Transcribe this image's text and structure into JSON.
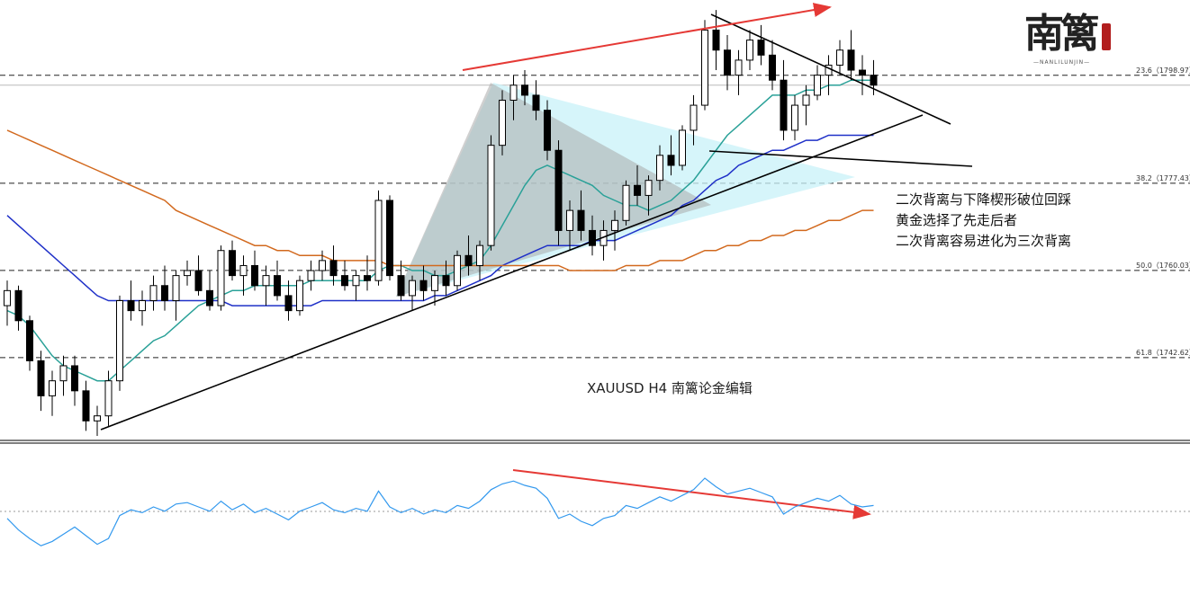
{
  "chart_data": {
    "type": "candlestick",
    "title": "XAUUSD  H4  南篱论金编辑",
    "symbol": "XAUUSD",
    "timeframe": "H4",
    "price_range": [
      1727,
      1814
    ],
    "fib_levels": [
      {
        "label": "23.6（1798.97）",
        "ratio": 23.6,
        "price": 1798.97
      },
      {
        "label": "38.2（1777.43）",
        "ratio": 38.2,
        "price": 1777.43
      },
      {
        "label": "50.0（1760.03）",
        "ratio": 50.0,
        "price": 1760.03
      },
      {
        "label": "61.8（1742.62）",
        "ratio": 61.8,
        "price": 1742.62
      }
    ],
    "candles": [
      [
        1753,
        1758,
        1749,
        1756
      ],
      [
        1756,
        1757,
        1748,
        1750
      ],
      [
        1750,
        1751,
        1740,
        1742
      ],
      [
        1742,
        1744,
        1732,
        1735
      ],
      [
        1735,
        1740,
        1731,
        1738
      ],
      [
        1738,
        1743,
        1735,
        1741
      ],
      [
        1741,
        1743,
        1733,
        1736
      ],
      [
        1736,
        1738,
        1728,
        1730
      ],
      [
        1730,
        1733,
        1727,
        1731
      ],
      [
        1731,
        1740,
        1729,
        1738
      ],
      [
        1738,
        1755,
        1736,
        1754
      ],
      [
        1754,
        1758,
        1750,
        1752
      ],
      [
        1752,
        1756,
        1749,
        1754
      ],
      [
        1754,
        1759,
        1752,
        1757
      ],
      [
        1757,
        1761,
        1752,
        1754
      ],
      [
        1754,
        1760,
        1750,
        1759
      ],
      [
        1759,
        1762,
        1757,
        1760
      ],
      [
        1760,
        1763,
        1755,
        1756
      ],
      [
        1756,
        1760,
        1752,
        1753
      ],
      [
        1753,
        1765,
        1752,
        1764
      ],
      [
        1764,
        1766,
        1758,
        1759
      ],
      [
        1759,
        1763,
        1755,
        1761
      ],
      [
        1761,
        1764,
        1756,
        1757
      ],
      [
        1757,
        1761,
        1753,
        1759
      ],
      [
        1759,
        1762,
        1754,
        1755
      ],
      [
        1755,
        1758,
        1750,
        1752
      ],
      [
        1752,
        1759,
        1751,
        1758
      ],
      [
        1758,
        1762,
        1756,
        1760
      ],
      [
        1760,
        1764,
        1758,
        1762
      ],
      [
        1762,
        1765,
        1757,
        1759
      ],
      [
        1759,
        1762,
        1756,
        1757
      ],
      [
        1757,
        1760,
        1754,
        1759
      ],
      [
        1759,
        1763,
        1756,
        1758
      ],
      [
        1758,
        1776,
        1757,
        1774
      ],
      [
        1774,
        1775,
        1758,
        1759
      ],
      [
        1759,
        1762,
        1754,
        1755
      ],
      [
        1755,
        1759,
        1752,
        1758
      ],
      [
        1758,
        1761,
        1754,
        1756
      ],
      [
        1756,
        1760,
        1753,
        1759
      ],
      [
        1759,
        1762,
        1755,
        1757
      ],
      [
        1757,
        1764,
        1756,
        1763
      ],
      [
        1763,
        1767,
        1759,
        1761
      ],
      [
        1761,
        1766,
        1758,
        1765
      ],
      [
        1765,
        1787,
        1764,
        1785
      ],
      [
        1785,
        1796,
        1783,
        1794
      ],
      [
        1794,
        1799,
        1790,
        1797
      ],
      [
        1797,
        1800,
        1793,
        1795
      ],
      [
        1795,
        1798,
        1790,
        1792
      ],
      [
        1792,
        1794,
        1782,
        1784
      ],
      [
        1784,
        1786,
        1765,
        1768
      ],
      [
        1768,
        1774,
        1764,
        1772
      ],
      [
        1772,
        1776,
        1766,
        1768
      ],
      [
        1768,
        1771,
        1763,
        1765
      ],
      [
        1765,
        1770,
        1762,
        1768
      ],
      [
        1768,
        1772,
        1764,
        1770
      ],
      [
        1770,
        1778,
        1769,
        1777
      ],
      [
        1777,
        1781,
        1773,
        1775
      ],
      [
        1775,
        1779,
        1771,
        1778
      ],
      [
        1778,
        1785,
        1776,
        1783
      ],
      [
        1783,
        1787,
        1779,
        1781
      ],
      [
        1781,
        1789,
        1780,
        1788
      ],
      [
        1788,
        1795,
        1785,
        1793
      ],
      [
        1793,
        1810,
        1792,
        1808
      ],
      [
        1808,
        1812,
        1800,
        1804
      ],
      [
        1804,
        1807,
        1796,
        1799
      ],
      [
        1799,
        1804,
        1795,
        1802
      ],
      [
        1802,
        1808,
        1800,
        1806
      ],
      [
        1806,
        1809,
        1801,
        1803
      ],
      [
        1803,
        1806,
        1796,
        1798
      ],
      [
        1798,
        1802,
        1786,
        1788
      ],
      [
        1788,
        1795,
        1786,
        1793
      ],
      [
        1793,
        1797,
        1789,
        1795
      ],
      [
        1795,
        1801,
        1794,
        1799
      ],
      [
        1799,
        1803,
        1795,
        1801
      ],
      [
        1801,
        1806,
        1799,
        1804
      ],
      [
        1804,
        1808,
        1798,
        1800
      ],
      [
        1800,
        1803,
        1795,
        1799
      ],
      [
        1799,
        1802,
        1795,
        1797
      ]
    ],
    "moving_averages": [
      {
        "color": "#2aa198",
        "values": [
          1752,
          1751,
          1749,
          1746,
          1743,
          1741,
          1740,
          1739,
          1738,
          1738,
          1740,
          1742,
          1744,
          1746,
          1747,
          1749,
          1751,
          1753,
          1754,
          1755,
          1756,
          1756,
          1757,
          1757,
          1757,
          1757,
          1757,
          1758,
          1758,
          1758,
          1758,
          1758,
          1758,
          1760,
          1761,
          1761,
          1760,
          1760,
          1759,
          1759,
          1760,
          1761,
          1762,
          1765,
          1769,
          1773,
          1777,
          1780,
          1781,
          1780,
          1779,
          1778,
          1777,
          1775,
          1774,
          1773,
          1773,
          1772,
          1773,
          1774,
          1776,
          1778,
          1781,
          1784,
          1787,
          1789,
          1791,
          1793,
          1795,
          1795,
          1795,
          1796,
          1796,
          1797,
          1797,
          1798,
          1798,
          1798
        ]
      },
      {
        "color": "#1f30c8",
        "values": [
          1771,
          1769,
          1767,
          1765,
          1763,
          1761,
          1759,
          1757,
          1755,
          1754,
          1754,
          1754,
          1754,
          1754,
          1754,
          1754,
          1754,
          1754,
          1754,
          1754,
          1753,
          1753,
          1753,
          1753,
          1753,
          1753,
          1753,
          1753,
          1754,
          1754,
          1754,
          1754,
          1754,
          1754,
          1754,
          1754,
          1754,
          1754,
          1755,
          1755,
          1756,
          1757,
          1758,
          1759,
          1761,
          1762,
          1763,
          1764,
          1765,
          1765,
          1765,
          1765,
          1766,
          1766,
          1766,
          1767,
          1768,
          1769,
          1770,
          1771,
          1773,
          1774,
          1776,
          1778,
          1779,
          1781,
          1782,
          1783,
          1784,
          1784,
          1785,
          1786,
          1786,
          1787,
          1787,
          1787,
          1787,
          1787
        ]
      },
      {
        "color": "#d2691e",
        "values": [
          1788,
          1787,
          1786,
          1785,
          1784,
          1783,
          1782,
          1781,
          1780,
          1779,
          1778,
          1777,
          1776,
          1775,
          1774,
          1772,
          1771,
          1770,
          1769,
          1768,
          1767,
          1766,
          1765,
          1765,
          1764,
          1764,
          1763,
          1763,
          1763,
          1762,
          1762,
          1762,
          1762,
          1762,
          1761,
          1761,
          1761,
          1761,
          1761,
          1761,
          1761,
          1761,
          1761,
          1761,
          1761,
          1761,
          1761,
          1761,
          1761,
          1761,
          1760,
          1760,
          1760,
          1760,
          1760,
          1761,
          1761,
          1761,
          1762,
          1762,
          1762,
          1763,
          1764,
          1764,
          1765,
          1765,
          1766,
          1766,
          1767,
          1767,
          1768,
          1768,
          1769,
          1770,
          1770,
          1771,
          1772,
          1772
        ]
      }
    ],
    "oscillator": {
      "color": "#3399ee",
      "range": [
        0,
        100
      ],
      "reference_level": 70,
      "values": [
        52,
        44,
        38,
        33,
        36,
        41,
        46,
        40,
        34,
        38,
        54,
        58,
        56,
        60,
        57,
        62,
        63,
        60,
        57,
        64,
        58,
        62,
        56,
        59,
        55,
        51,
        57,
        60,
        63,
        58,
        56,
        59,
        57,
        71,
        60,
        56,
        59,
        55,
        58,
        56,
        61,
        59,
        64,
        72,
        76,
        78,
        75,
        73,
        66,
        52,
        55,
        50,
        47,
        52,
        54,
        61,
        59,
        63,
        67,
        64,
        68,
        72,
        80,
        74,
        69,
        71,
        73,
        70,
        67,
        55,
        60,
        63,
        66,
        64,
        68,
        62,
        60,
        61
      ]
    },
    "annotations": [
      "二次背离与下降楔形破位回踩",
      "黄金选择了先走后者",
      "二次背离容易进化为三次背离"
    ]
  },
  "logo": {
    "text": "南篱",
    "subtext": "—NANLILUNJIN—"
  },
  "colors": {
    "divergence_arrow": "#e53935",
    "wedge_fill": "#c8f2f8",
    "triangle_fill": "#bfbfbf",
    "trendline": "#000000"
  }
}
